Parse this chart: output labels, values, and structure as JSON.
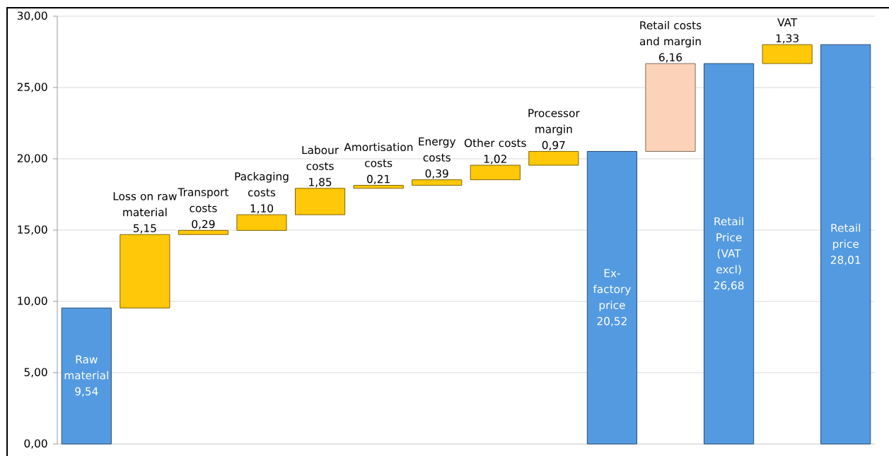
{
  "chart_data": {
    "type": "bar",
    "categories": [
      "Raw material",
      "Loss on raw material",
      "Transport costs",
      "Packaging costs",
      "Labour costs",
      "Amortisation costs",
      "Energy costs",
      "Other costs",
      "Processor margin",
      "Ex-factory price",
      "Retail costs and margin",
      "Retail Price (VAT excl)",
      "VAT",
      "Retail price"
    ],
    "values": [
      9.54,
      5.15,
      0.29,
      1.1,
      1.85,
      0.21,
      0.39,
      1.02,
      0.97,
      20.52,
      6.16,
      26.68,
      1.33,
      28.01
    ],
    "base": [
      0,
      9.54,
      14.69,
      14.98,
      16.08,
      17.93,
      18.14,
      18.53,
      19.55,
      0,
      20.52,
      0,
      26.68,
      0
    ],
    "colors": [
      "#549AE0",
      "#FFC808",
      "#FFC808",
      "#FFC808",
      "#FFC808",
      "#FFC808",
      "#FFC808",
      "#FFC808",
      "#FFC808",
      "#549AE0",
      "#FCD3B8",
      "#549AE0",
      "#FFC808",
      "#549AE0"
    ],
    "value_labels": [
      "9,54",
      "5,15",
      "0,29",
      "1,10",
      "1,85",
      "0,21",
      "0,39",
      "1,02",
      "0,97",
      "20,52",
      "6,16",
      "26,68",
      "1,33",
      "28,01"
    ],
    "ylim": [
      0,
      30
    ],
    "yticks": [
      {
        "value": 0,
        "label": "0,00"
      },
      {
        "value": 5,
        "label": "5,00"
      },
      {
        "value": 10,
        "label": "10,00"
      },
      {
        "value": 15,
        "label": "15,00"
      },
      {
        "value": 20,
        "label": "20,00"
      },
      {
        "value": 25,
        "label": "25,00"
      },
      {
        "value": 30,
        "label": "30,00"
      }
    ],
    "grid": "y",
    "tick_labels": "y"
  }
}
